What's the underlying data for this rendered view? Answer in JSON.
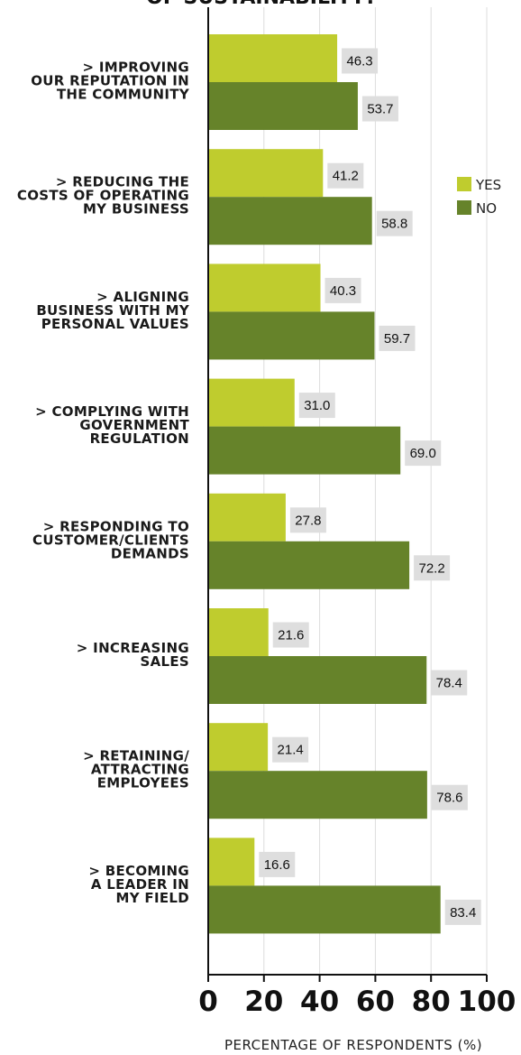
{
  "chart_data": {
    "type": "bar",
    "orientation": "horizontal",
    "title": "OF SUSTAINABILITY?",
    "xlabel": "PERCENTAGE OF RESPONDENTS (%)",
    "xlim": [
      0,
      100
    ],
    "xticks": [
      "0",
      "20",
      "40",
      "60",
      "80",
      "100"
    ],
    "grid": true,
    "legend_position": "right",
    "categories": [
      [
        "> IMPROVING",
        "OUR REPUTATION IN",
        "THE COMMUNITY"
      ],
      [
        "> REDUCING THE",
        "COSTS OF OPERATING",
        "MY BUSINESS"
      ],
      [
        "> ALIGNING",
        "BUSINESS WITH MY",
        "PERSONAL VALUES"
      ],
      [
        "> COMPLYING WITH",
        "GOVERNMENT",
        "REGULATION"
      ],
      [
        "> RESPONDING TO",
        "CUSTOMER/CLIENTS",
        "DEMANDS"
      ],
      [
        "> INCREASING",
        "SALES"
      ],
      [
        "> RETAINING/",
        "ATTRACTING",
        "EMPLOYEES"
      ],
      [
        "> BECOMING",
        "A LEADER IN",
        "MY FIELD"
      ]
    ],
    "series": [
      {
        "name": "YES",
        "color": "#bfcc2e",
        "values": [
          46.3,
          41.2,
          40.3,
          31.0,
          27.8,
          21.6,
          21.4,
          16.6
        ],
        "labels": [
          "46.3",
          "41.2",
          "40.3",
          "31.0",
          "27.8",
          "21.6",
          "21.4",
          "16.6"
        ]
      },
      {
        "name": "NO",
        "color": "#66832a",
        "values": [
          53.7,
          58.8,
          59.7,
          69.0,
          72.2,
          78.4,
          78.6,
          83.4
        ],
        "labels": [
          "53.7",
          "58.8",
          "59.7",
          "69.0",
          "72.2",
          "78.4",
          "78.6",
          "83.4"
        ]
      }
    ],
    "label_box_color": "#dedede",
    "grid_color": "#dcdcdc",
    "axis_color": "#111111"
  }
}
